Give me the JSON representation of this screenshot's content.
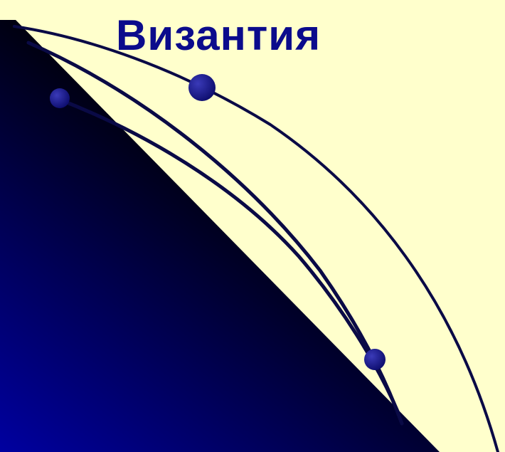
{
  "slide": {
    "title": "Византия"
  },
  "colors": {
    "background": "#ffffcc",
    "title": "#0b0b8c",
    "curve": "#0a0a46",
    "orb": "#0d0d6e",
    "dark_gradient_start": "#0000a0",
    "dark_gradient_end": "#000000"
  },
  "decorations": {
    "dark-triangle": "dark-triangle",
    "curved-lines": "curved-lines",
    "orbs": "orbs"
  }
}
